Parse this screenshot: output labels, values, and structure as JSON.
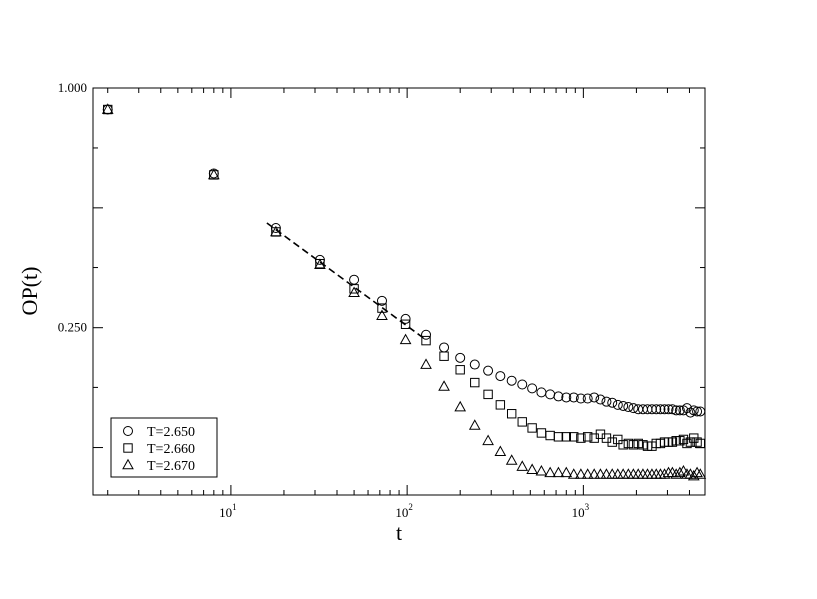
{
  "chart_data": {
    "type": "scatter",
    "title": "",
    "xlabel": "t",
    "ylabel": "OP(t)",
    "xscale": "log",
    "yscale": "log",
    "xlim": [
      1.65,
      4900
    ],
    "ylim": [
      0.095,
      1.0
    ],
    "grid": false,
    "legend_position": "bottom-left",
    "x_ticks": [
      {
        "base": "10",
        "exp": "1",
        "value": 10
      },
      {
        "base": "10",
        "exp": "2",
        "value": 100
      },
      {
        "base": "10",
        "exp": "3",
        "value": 1000
      }
    ],
    "y_ticks": [
      {
        "label": "1.000",
        "value": 1.0
      },
      {
        "label": "0.250",
        "value": 0.25
      }
    ],
    "series": [
      {
        "name": "T=2.650",
        "marker": "circle",
        "x": [
          2,
          8,
          18,
          32,
          50,
          72,
          98,
          128,
          162,
          200,
          242,
          288,
          338,
          392,
          450,
          512,
          578,
          648,
          722,
          800,
          882,
          968,
          1058,
          1152,
          1250,
          1352,
          1458,
          1568,
          1682,
          1800,
          1922,
          2048,
          2178,
          2312,
          2450,
          2592,
          2738,
          2888,
          3042,
          3200,
          3362,
          3528,
          3698,
          3872,
          4050,
          4232,
          4418,
          4608
        ],
        "y": [
          0.883,
          0.61,
          0.445,
          0.37,
          0.33,
          0.292,
          0.263,
          0.24,
          0.223,
          0.21,
          0.202,
          0.195,
          0.189,
          0.184,
          0.18,
          0.176,
          0.172,
          0.17,
          0.168,
          0.167,
          0.167,
          0.166,
          0.166,
          0.167,
          0.165,
          0.163,
          0.162,
          0.16,
          0.159,
          0.158,
          0.157,
          0.156,
          0.156,
          0.156,
          0.156,
          0.156,
          0.156,
          0.156,
          0.156,
          0.156,
          0.155,
          0.155,
          0.155,
          0.157,
          0.153,
          0.155,
          0.154,
          0.154
        ]
      },
      {
        "name": "T=2.660",
        "marker": "square",
        "x": [
          2,
          8,
          18,
          32,
          50,
          72,
          98,
          128,
          162,
          200,
          242,
          288,
          338,
          392,
          450,
          512,
          578,
          648,
          722,
          800,
          882,
          968,
          1058,
          1152,
          1250,
          1352,
          1458,
          1568,
          1682,
          1800,
          1922,
          2048,
          2178,
          2312,
          2450,
          2592,
          2738,
          2888,
          3042,
          3200,
          3362,
          3528,
          3698,
          3872,
          4050,
          4232,
          4418,
          4608
        ],
        "y": [
          0.883,
          0.605,
          0.435,
          0.362,
          0.313,
          0.28,
          0.255,
          0.232,
          0.212,
          0.196,
          0.182,
          0.17,
          0.16,
          0.152,
          0.145,
          0.14,
          0.136,
          0.134,
          0.133,
          0.133,
          0.133,
          0.132,
          0.133,
          0.132,
          0.135,
          0.132,
          0.129,
          0.131,
          0.127,
          0.128,
          0.127,
          0.128,
          0.127,
          0.126,
          0.126,
          0.128,
          0.128,
          0.129,
          0.129,
          0.129,
          0.13,
          0.13,
          0.131,
          0.128,
          0.129,
          0.132,
          0.129,
          0.128
        ]
      },
      {
        "name": "T=2.670",
        "marker": "triangle",
        "x": [
          2,
          8,
          18,
          32,
          50,
          72,
          98,
          128,
          162,
          200,
          242,
          288,
          338,
          392,
          450,
          512,
          578,
          648,
          722,
          800,
          882,
          968,
          1058,
          1152,
          1250,
          1352,
          1458,
          1568,
          1682,
          1800,
          1922,
          2048,
          2178,
          2312,
          2450,
          2592,
          2738,
          2888,
          3042,
          3200,
          3362,
          3528,
          3698,
          3872,
          4050,
          4232,
          4418,
          4608
        ],
        "y": [
          0.883,
          0.605,
          0.435,
          0.36,
          0.306,
          0.268,
          0.233,
          0.202,
          0.178,
          0.158,
          0.142,
          0.13,
          0.122,
          0.116,
          0.112,
          0.11,
          0.109,
          0.108,
          0.108,
          0.108,
          0.107,
          0.107,
          0.107,
          0.107,
          0.107,
          0.107,
          0.107,
          0.107,
          0.107,
          0.107,
          0.107,
          0.107,
          0.107,
          0.107,
          0.107,
          0.107,
          0.107,
          0.107,
          0.108,
          0.108,
          0.107,
          0.108,
          0.109,
          0.107,
          0.107,
          0.106,
          0.108,
          0.107
        ]
      }
    ],
    "fit_line": {
      "style": "dashed",
      "x": [
        16,
        128
      ],
      "y": [
        0.458,
        0.233
      ]
    }
  }
}
